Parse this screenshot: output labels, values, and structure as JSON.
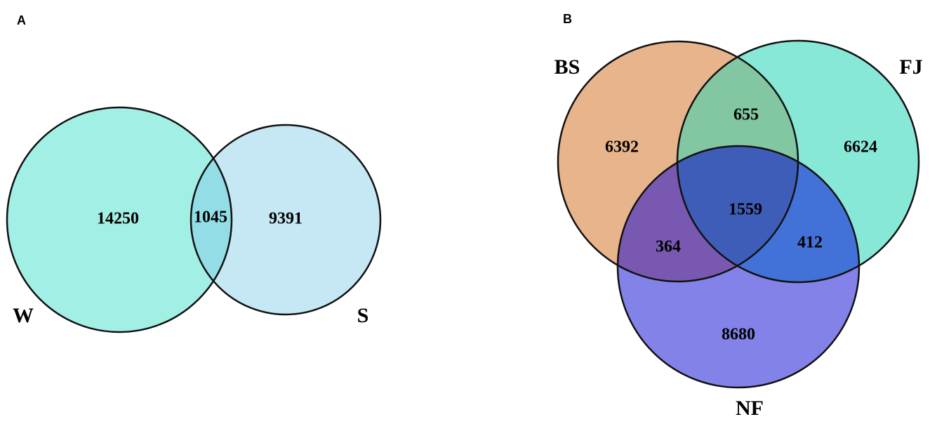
{
  "panels": [
    {
      "label": "A",
      "sets": [
        "W",
        "S"
      ],
      "regions": [
        14250,
        1045,
        9391
      ]
    },
    {
      "label": "B",
      "sets": [
        "BS",
        "FJ",
        "NF"
      ],
      "regions": [
        6392,
        655,
        6624,
        1559,
        364,
        412,
        8680
      ]
    }
  ]
}
